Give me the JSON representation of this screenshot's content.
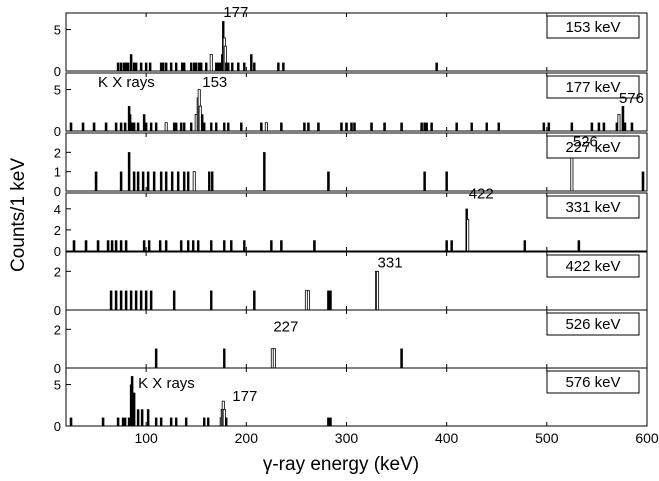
{
  "figure": {
    "ylabel": "Counts/1 keV",
    "xlabel": "γ-ray energy (keV)",
    "x_ticks": [
      100,
      200,
      300,
      400,
      500,
      600
    ],
    "xlim": [
      20,
      600
    ]
  },
  "chart_data": [
    {
      "type": "bar",
      "label": "153 keV",
      "ylim": [
        0,
        7
      ],
      "y_ticks": [
        0,
        5
      ],
      "annotations": [
        {
          "text": "177",
          "x": 177,
          "y": 6.5
        }
      ],
      "x": [
        72,
        75,
        78,
        80,
        82,
        85,
        88,
        90,
        95,
        100,
        104,
        115,
        117,
        120,
        125,
        130,
        136,
        138,
        145,
        148,
        150,
        153,
        155,
        160,
        165,
        170,
        172,
        174,
        176,
        177,
        178,
        179,
        180,
        182,
        186,
        192,
        198,
        205,
        208,
        232,
        237,
        390
      ],
      "y": [
        1,
        1,
        1,
        1,
        1,
        2,
        1,
        1,
        1,
        1,
        1,
        1,
        1,
        1,
        1,
        1,
        1,
        1,
        1,
        1,
        1,
        1,
        1,
        1,
        2,
        1,
        1,
        1,
        2,
        6,
        4,
        3,
        1,
        1,
        1,
        1,
        1,
        2,
        1,
        1,
        1,
        1
      ],
      "hollow": [
        false,
        false,
        false,
        false,
        false,
        false,
        false,
        false,
        false,
        false,
        false,
        false,
        false,
        false,
        false,
        false,
        false,
        false,
        false,
        false,
        false,
        false,
        false,
        false,
        true,
        false,
        false,
        false,
        false,
        false,
        true,
        true,
        false,
        false,
        false,
        false,
        false,
        false,
        false,
        false,
        false,
        false
      ]
    },
    {
      "type": "bar",
      "label": "177 keV",
      "ylim": [
        0,
        7
      ],
      "y_ticks": [
        0,
        5
      ],
      "annotations": [
        {
          "text": "K X rays",
          "x": 52,
          "y": 5.3
        },
        {
          "text": "153",
          "x": 156,
          "y": 5.3
        },
        {
          "text": "576",
          "x": 572,
          "y": 3.4
        }
      ],
      "x": [
        25,
        37,
        48,
        60,
        70,
        75,
        79,
        83,
        84,
        85,
        86,
        88,
        92,
        98,
        100,
        105,
        110,
        120,
        128,
        130,
        135,
        138,
        145,
        150,
        152,
        153,
        154,
        156,
        158,
        165,
        170,
        178,
        182,
        195,
        215,
        220,
        235,
        258,
        262,
        272,
        295,
        300,
        305,
        308,
        325,
        338,
        355,
        375,
        378,
        380,
        385,
        410,
        425,
        440,
        452,
        497,
        502,
        525,
        545,
        552,
        557,
        570,
        572,
        576,
        578,
        585
      ],
      "y": [
        1,
        1,
        1,
        1,
        1,
        1,
        1,
        3,
        2,
        1,
        1,
        1,
        1,
        2,
        1,
        1,
        1,
        1,
        1,
        1,
        1,
        1,
        1,
        2,
        4,
        5,
        3,
        2,
        1,
        1,
        1,
        1,
        1,
        1,
        1,
        1,
        1,
        1,
        1,
        1,
        1,
        1,
        1,
        1,
        1,
        1,
        1,
        1,
        1,
        1,
        1,
        1,
        1,
        1,
        1,
        1,
        1,
        1,
        1,
        1,
        1,
        1,
        2,
        3,
        1,
        1
      ],
      "hollow": [
        false,
        false,
        false,
        false,
        false,
        false,
        false,
        false,
        false,
        false,
        false,
        false,
        false,
        false,
        false,
        false,
        false,
        true,
        false,
        false,
        false,
        false,
        false,
        true,
        true,
        true,
        true,
        false,
        false,
        false,
        false,
        false,
        false,
        false,
        false,
        true,
        false,
        false,
        false,
        false,
        false,
        false,
        false,
        false,
        false,
        false,
        false,
        false,
        false,
        false,
        false,
        false,
        false,
        false,
        false,
        false,
        false,
        false,
        false,
        false,
        false,
        false,
        true,
        false,
        false,
        false
      ]
    },
    {
      "type": "bar",
      "label": "227 keV",
      "ylim": [
        0,
        3
      ],
      "y_ticks": [
        0,
        1,
        2
      ],
      "annotations": [
        {
          "text": "526",
          "x": 526,
          "y": 2.3
        }
      ],
      "x": [
        50,
        75,
        83,
        88,
        92,
        97,
        102,
        108,
        115,
        120,
        126,
        132,
        138,
        142,
        148,
        163,
        166,
        218,
        282,
        378,
        400,
        525,
        596
      ],
      "y": [
        1,
        1,
        2,
        1,
        1,
        1,
        1,
        1,
        1,
        1,
        1,
        1,
        1,
        1,
        1,
        1,
        1,
        2,
        1,
        1,
        1,
        2,
        1
      ],
      "hollow": [
        false,
        false,
        false,
        false,
        false,
        false,
        false,
        false,
        false,
        false,
        false,
        false,
        false,
        false,
        true,
        false,
        false,
        false,
        false,
        false,
        false,
        true,
        false
      ]
    },
    {
      "type": "bar",
      "label": "331 keV",
      "ylim": [
        0,
        5.5
      ],
      "y_ticks": [
        0,
        2,
        4
      ],
      "annotations": [
        {
          "text": "422",
          "x": 422,
          "y": 5.0
        }
      ],
      "x": [
        28,
        40,
        52,
        62,
        66,
        70,
        75,
        80,
        98,
        103,
        114,
        120,
        135,
        142,
        147,
        152,
        165,
        178,
        185,
        198,
        225,
        235,
        268,
        400,
        405,
        420,
        421,
        478,
        532
      ],
      "y": [
        1,
        1,
        1,
        1,
        1,
        1,
        1,
        1,
        1,
        1,
        1,
        1,
        1,
        1,
        1,
        1,
        1,
        1,
        1,
        1,
        1,
        1,
        1,
        1,
        1,
        4,
        3,
        1,
        1
      ],
      "hollow": [
        false,
        false,
        false,
        false,
        false,
        false,
        false,
        false,
        false,
        false,
        false,
        false,
        false,
        false,
        false,
        false,
        false,
        false,
        false,
        false,
        false,
        false,
        false,
        false,
        false,
        false,
        true,
        false,
        false
      ]
    },
    {
      "type": "bar",
      "label": "422 keV",
      "ylim": [
        0,
        3
      ],
      "y_ticks": [
        0,
        2
      ],
      "annotations": [
        {
          "text": "331",
          "x": 331,
          "y": 2.2
        }
      ],
      "x": [
        65,
        70,
        75,
        80,
        85,
        90,
        95,
        100,
        105,
        128,
        165,
        208,
        260,
        262,
        282,
        284,
        330,
        331
      ],
      "y": [
        1,
        1,
        1,
        1,
        1,
        1,
        1,
        1,
        1,
        1,
        1,
        1,
        1,
        1,
        1,
        1,
        2,
        2
      ],
      "hollow": [
        false,
        false,
        false,
        false,
        false,
        false,
        false,
        false,
        false,
        false,
        false,
        false,
        true,
        true,
        false,
        false,
        true,
        true
      ]
    },
    {
      "type": "bar",
      "label": "526 keV",
      "ylim": [
        0,
        3
      ],
      "y_ticks": [
        0,
        2
      ],
      "annotations": [
        {
          "text": "227",
          "x": 227,
          "y": 1.9
        }
      ],
      "x": [
        110,
        178,
        226,
        228,
        355
      ],
      "y": [
        1,
        1,
        1,
        1,
        1
      ],
      "hollow": [
        false,
        false,
        true,
        true,
        false
      ]
    },
    {
      "type": "bar",
      "label": "576 keV",
      "ylim": [
        0,
        7
      ],
      "y_ticks": [
        0,
        5
      ],
      "annotations": [
        {
          "text": "K X rays",
          "x": 92,
          "y": 4.6
        },
        {
          "text": "177",
          "x": 186,
          "y": 3.0
        }
      ],
      "x": [
        25,
        57,
        72,
        77,
        79,
        83,
        85,
        86,
        88,
        92,
        96,
        102,
        110,
        115,
        125,
        130,
        140,
        158,
        162,
        175,
        176,
        177,
        178,
        180,
        282,
        284
      ],
      "y": [
        1,
        1,
        1,
        1,
        1,
        1,
        5,
        6,
        4,
        2,
        2,
        2,
        1,
        1,
        1,
        1,
        1,
        1,
        1,
        1,
        2,
        3,
        2,
        1,
        1,
        1
      ],
      "hollow": [
        false,
        false,
        false,
        false,
        false,
        false,
        false,
        false,
        false,
        false,
        false,
        false,
        false,
        false,
        false,
        false,
        false,
        false,
        false,
        true,
        true,
        true,
        true,
        false,
        false,
        false
      ]
    }
  ]
}
